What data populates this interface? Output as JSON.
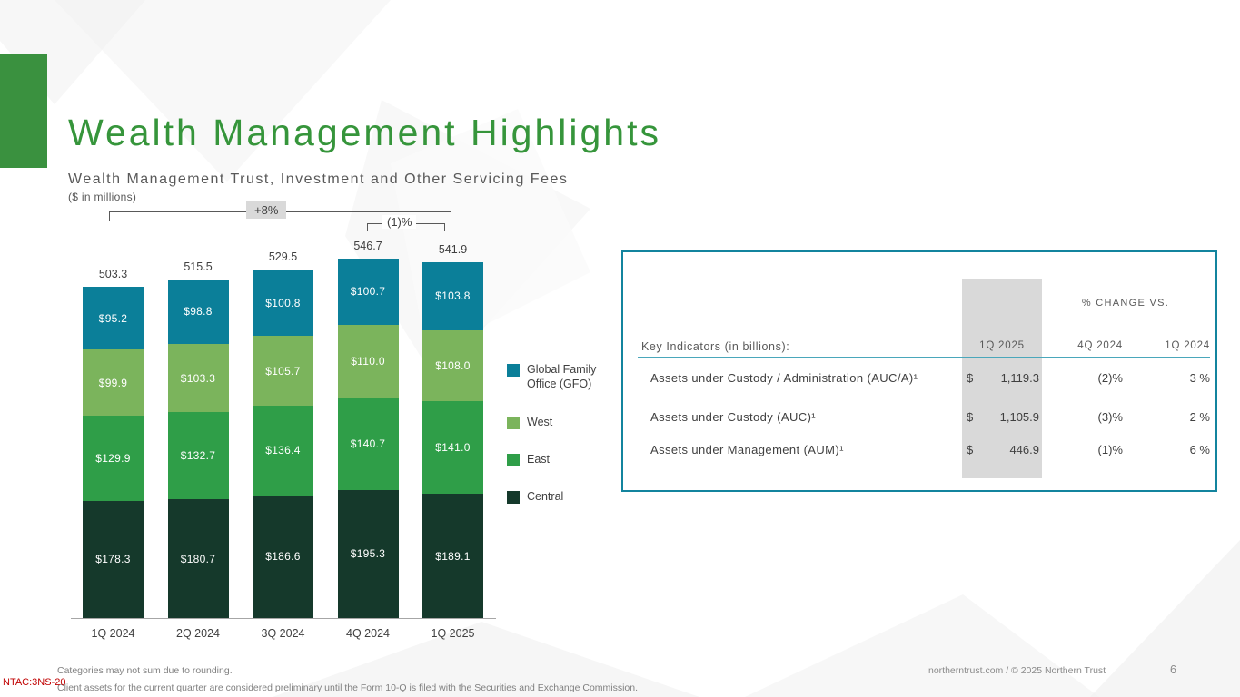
{
  "slide": {
    "title": "Wealth Management Highlights",
    "subtitle": "Wealth Management Trust, Investment and Other Servicing Fees",
    "units_note": "($ in millions)"
  },
  "chart_data": {
    "type": "bar",
    "stacked": true,
    "title": "Wealth Management Trust, Investment and Other Servicing Fees",
    "units": "$ in millions",
    "categories": [
      "1Q 2024",
      "2Q 2024",
      "3Q 2024",
      "4Q 2024",
      "1Q 2025"
    ],
    "series": [
      {
        "name": "Central",
        "color": "#15392b",
        "values": [
          178.3,
          180.7,
          186.6,
          195.3,
          189.1
        ]
      },
      {
        "name": "East",
        "color": "#2f9e48",
        "values": [
          129.9,
          132.7,
          136.4,
          140.7,
          141.0
        ]
      },
      {
        "name": "West",
        "color": "#7bb45c",
        "values": [
          99.9,
          103.3,
          105.7,
          110.0,
          108.0
        ]
      },
      {
        "name": "Global Family Office (GFO)",
        "color": "#0b7f99",
        "values": [
          95.2,
          98.8,
          100.8,
          100.7,
          103.8
        ]
      }
    ],
    "totals": [
      503.3,
      515.5,
      529.5,
      546.7,
      541.9
    ],
    "annotations": [
      {
        "label": "+8%",
        "from": "1Q 2024",
        "to": "1Q 2025"
      },
      {
        "label": "(1)%",
        "from": "4Q 2024",
        "to": "1Q 2025"
      }
    ],
    "ylim": [
      0,
      560
    ],
    "grid": false,
    "legend_position": "right"
  },
  "kpi_table": {
    "change_header": "% CHANGE VS.",
    "key_header": "Key Indicators (in billions):",
    "col_current": "1Q 2025",
    "col_vs_4q": "4Q 2024",
    "col_vs_1q": "1Q 2024",
    "rows": [
      {
        "label": "Assets under Custody / Administration (AUC/A)¹",
        "currency": "$",
        "value": "1,119.3",
        "vs_4q": "(2)%",
        "vs_1q": "3 %"
      },
      {
        "label": "Assets under Custody (AUC)¹",
        "currency": "$",
        "value": "1,105.9",
        "vs_4q": "(3)%",
        "vs_1q": "2 %"
      },
      {
        "label": "Assets under Management (AUM)¹",
        "currency": "$",
        "value": "446.9",
        "vs_4q": "(1)%",
        "vs_1q": "6 %"
      }
    ]
  },
  "footer": {
    "note1": "Categories  may not sum due to rounding.",
    "note2": "Client  assets  for the current quarter are  considered preliminary  until the Form 10-Q is filed  with the Securities  and Exchange Commission.",
    "ntac": "NTAC:3NS-20",
    "source": "northerntrust.com / © 2025 Northern Trust",
    "page": "6"
  },
  "colors": {
    "brand_green": "#3a913f",
    "teal_border": "#13849e",
    "highlight_band": "#d9d9d9"
  }
}
